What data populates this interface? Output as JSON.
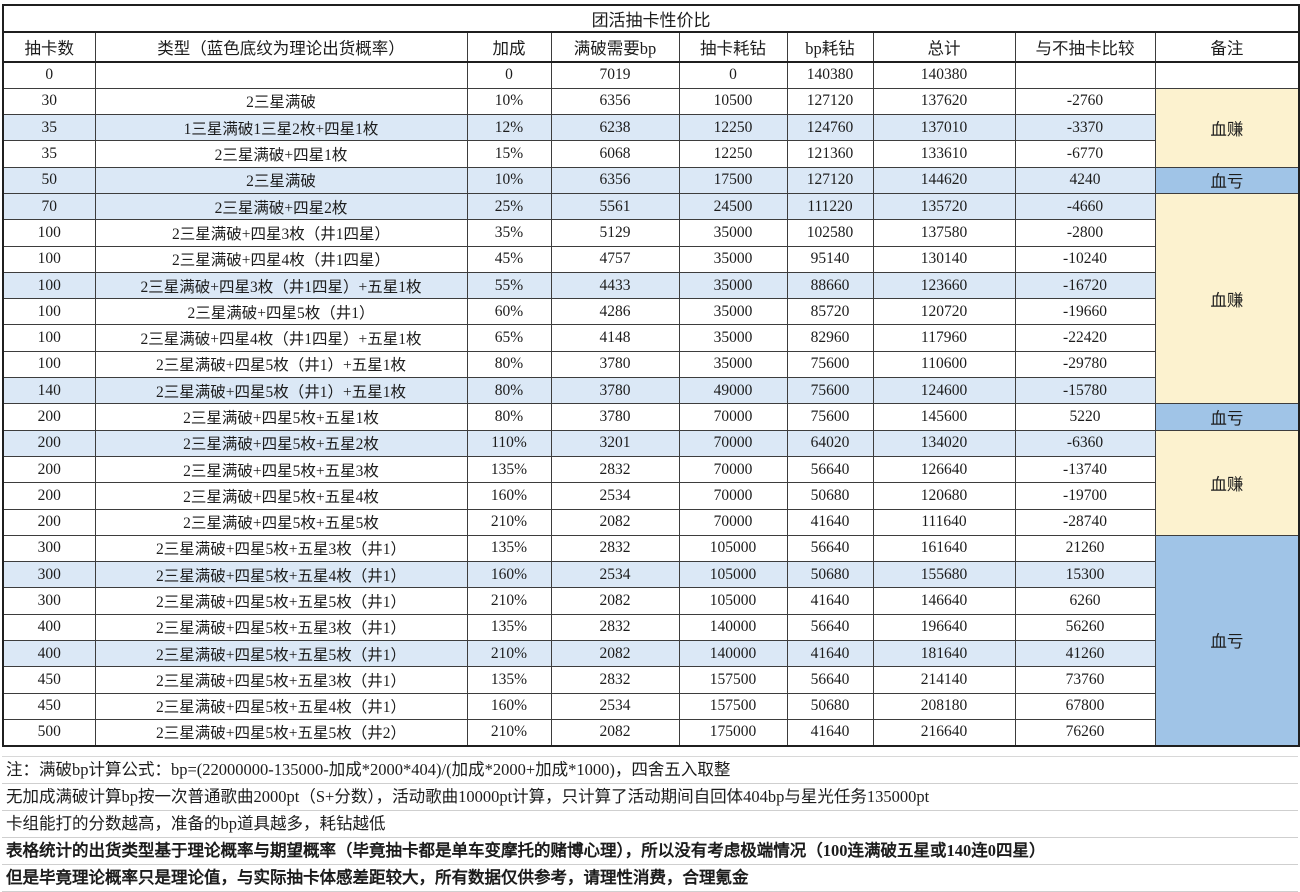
{
  "title": "团活抽卡性价比",
  "columns": [
    "抽卡数",
    "类型（蓝色底纹为理论出货概率）",
    "加成",
    "满破需要bp",
    "抽卡耗钻",
    "bp耗钻",
    "总计",
    "与不抽卡比较",
    "备注"
  ],
  "rows": [
    {
      "pulls": "0",
      "type": "",
      "bonus": "0",
      "bp": "7019",
      "pull_cost": "0",
      "bp_cost": "140380",
      "total": "140380",
      "diff": "",
      "highlight": false
    },
    {
      "pulls": "30",
      "type": "2三星满破",
      "bonus": "10%",
      "bp": "6356",
      "pull_cost": "10500",
      "bp_cost": "127120",
      "total": "137620",
      "diff": "-2760",
      "highlight": false
    },
    {
      "pulls": "35",
      "type": "1三星满破1三星2枚+四星1枚",
      "bonus": "12%",
      "bp": "6238",
      "pull_cost": "12250",
      "bp_cost": "124760",
      "total": "137010",
      "diff": "-3370",
      "highlight": true
    },
    {
      "pulls": "35",
      "type": "2三星满破+四星1枚",
      "bonus": "15%",
      "bp": "6068",
      "pull_cost": "12250",
      "bp_cost": "121360",
      "total": "133610",
      "diff": "-6770",
      "highlight": false
    },
    {
      "pulls": "50",
      "type": "2三星满破",
      "bonus": "10%",
      "bp": "6356",
      "pull_cost": "17500",
      "bp_cost": "127120",
      "total": "144620",
      "diff": "4240",
      "highlight": true
    },
    {
      "pulls": "70",
      "type": "2三星满破+四星2枚",
      "bonus": "25%",
      "bp": "5561",
      "pull_cost": "24500",
      "bp_cost": "111220",
      "total": "135720",
      "diff": "-4660",
      "highlight": true
    },
    {
      "pulls": "100",
      "type": "2三星满破+四星3枚（井1四星）",
      "bonus": "35%",
      "bp": "5129",
      "pull_cost": "35000",
      "bp_cost": "102580",
      "total": "137580",
      "diff": "-2800",
      "highlight": false
    },
    {
      "pulls": "100",
      "type": "2三星满破+四星4枚（井1四星）",
      "bonus": "45%",
      "bp": "4757",
      "pull_cost": "35000",
      "bp_cost": "95140",
      "total": "130140",
      "diff": "-10240",
      "highlight": false
    },
    {
      "pulls": "100",
      "type": "2三星满破+四星3枚（井1四星）+五星1枚",
      "bonus": "55%",
      "bp": "4433",
      "pull_cost": "35000",
      "bp_cost": "88660",
      "total": "123660",
      "diff": "-16720",
      "highlight": true
    },
    {
      "pulls": "100",
      "type": "2三星满破+四星5枚（井1）",
      "bonus": "60%",
      "bp": "4286",
      "pull_cost": "35000",
      "bp_cost": "85720",
      "total": "120720",
      "diff": "-19660",
      "highlight": false
    },
    {
      "pulls": "100",
      "type": "2三星满破+四星4枚（井1四星）+五星1枚",
      "bonus": "65%",
      "bp": "4148",
      "pull_cost": "35000",
      "bp_cost": "82960",
      "total": "117960",
      "diff": "-22420",
      "highlight": false
    },
    {
      "pulls": "100",
      "type": "2三星满破+四星5枚（井1）+五星1枚",
      "bonus": "80%",
      "bp": "3780",
      "pull_cost": "35000",
      "bp_cost": "75600",
      "total": "110600",
      "diff": "-29780",
      "highlight": false
    },
    {
      "pulls": "140",
      "type": "2三星满破+四星5枚（井1）+五星1枚",
      "bonus": "80%",
      "bp": "3780",
      "pull_cost": "49000",
      "bp_cost": "75600",
      "total": "124600",
      "diff": "-15780",
      "highlight": true
    },
    {
      "pulls": "200",
      "type": "2三星满破+四星5枚+五星1枚",
      "bonus": "80%",
      "bp": "3780",
      "pull_cost": "70000",
      "bp_cost": "75600",
      "total": "145600",
      "diff": "5220",
      "highlight": false
    },
    {
      "pulls": "200",
      "type": "2三星满破+四星5枚+五星2枚",
      "bonus": "110%",
      "bp": "3201",
      "pull_cost": "70000",
      "bp_cost": "64020",
      "total": "134020",
      "diff": "-6360",
      "highlight": true
    },
    {
      "pulls": "200",
      "type": "2三星满破+四星5枚+五星3枚",
      "bonus": "135%",
      "bp": "2832",
      "pull_cost": "70000",
      "bp_cost": "56640",
      "total": "126640",
      "diff": "-13740",
      "highlight": false
    },
    {
      "pulls": "200",
      "type": "2三星满破+四星5枚+五星4枚",
      "bonus": "160%",
      "bp": "2534",
      "pull_cost": "70000",
      "bp_cost": "50680",
      "total": "120680",
      "diff": "-19700",
      "highlight": false
    },
    {
      "pulls": "200",
      "type": "2三星满破+四星5枚+五星5枚",
      "bonus": "210%",
      "bp": "2082",
      "pull_cost": "70000",
      "bp_cost": "41640",
      "total": "111640",
      "diff": "-28740",
      "highlight": false
    },
    {
      "pulls": "300",
      "type": "2三星满破+四星5枚+五星3枚（井1）",
      "bonus": "135%",
      "bp": "2832",
      "pull_cost": "105000",
      "bp_cost": "56640",
      "total": "161640",
      "diff": "21260",
      "highlight": false
    },
    {
      "pulls": "300",
      "type": "2三星满破+四星5枚+五星4枚（井1）",
      "bonus": "160%",
      "bp": "2534",
      "pull_cost": "105000",
      "bp_cost": "50680",
      "total": "155680",
      "diff": "15300",
      "highlight": true
    },
    {
      "pulls": "300",
      "type": "2三星满破+四星5枚+五星5枚（井1）",
      "bonus": "210%",
      "bp": "2082",
      "pull_cost": "105000",
      "bp_cost": "41640",
      "total": "146640",
      "diff": "6260",
      "highlight": false
    },
    {
      "pulls": "400",
      "type": "2三星满破+四星5枚+五星3枚（井1）",
      "bonus": "135%",
      "bp": "2832",
      "pull_cost": "140000",
      "bp_cost": "56640",
      "total": "196640",
      "diff": "56260",
      "highlight": false
    },
    {
      "pulls": "400",
      "type": "2三星满破+四星5枚+五星5枚（井1）",
      "bonus": "210%",
      "bp": "2082",
      "pull_cost": "140000",
      "bp_cost": "41640",
      "total": "181640",
      "diff": "41260",
      "highlight": true
    },
    {
      "pulls": "450",
      "type": "2三星满破+四星5枚+五星3枚（井1）",
      "bonus": "135%",
      "bp": "2832",
      "pull_cost": "157500",
      "bp_cost": "56640",
      "total": "214140",
      "diff": "73760",
      "highlight": false
    },
    {
      "pulls": "450",
      "type": "2三星满破+四星5枚+五星4枚（井1）",
      "bonus": "160%",
      "bp": "2534",
      "pull_cost": "157500",
      "bp_cost": "50680",
      "total": "208180",
      "diff": "67800",
      "highlight": false
    },
    {
      "pulls": "500",
      "type": "2三星满破+四星5枚+五星5枚（井2）",
      "bonus": "210%",
      "bp": "2082",
      "pull_cost": "175000",
      "bp_cost": "41640",
      "total": "216640",
      "diff": "76260",
      "highlight": false
    }
  ],
  "remarks": [
    {
      "row": 0,
      "span": 1,
      "label": "",
      "style": "none"
    },
    {
      "row": 1,
      "span": 3,
      "label": "血赚",
      "style": "gain"
    },
    {
      "row": 4,
      "span": 1,
      "label": "血亏",
      "style": "loss"
    },
    {
      "row": 5,
      "span": 8,
      "label": "血赚",
      "style": "gain"
    },
    {
      "row": 13,
      "span": 1,
      "label": "血亏",
      "style": "loss"
    },
    {
      "row": 14,
      "span": 4,
      "label": "血赚",
      "style": "gain"
    },
    {
      "row": 18,
      "span": 8,
      "label": "血亏",
      "style": "loss"
    }
  ],
  "notes": [
    "注：满破bp计算公式：bp=(22000000-135000-加成*2000*404)/(加成*2000+加成*1000)，四舍五入取整",
    "无加成满破计算bp按一次普通歌曲2000pt（S+分数），活动歌曲10000pt计算，只计算了活动期间自回体404bp与星光任务135000pt",
    "卡组能打的分数越高，准备的bp道具越多，耗钻越低",
    "表格统计的出货类型基于理论概率与期望概率（毕竟抽卡都是单车变摩托的赌博心理），所以没有考虑极端情况（100连满破五星或140连0四星）",
    "但是毕竟理论概率只是理论值，与实际抽卡体感差距较大，所有数据仅供参考，请理性消费，合理氪金"
  ],
  "colors": {
    "row_highlight": "#DBE8F6",
    "remark_gain_bg": "#FCF2CF",
    "remark_loss_bg": "#A0C4E7",
    "border": "#3d3d3d"
  }
}
